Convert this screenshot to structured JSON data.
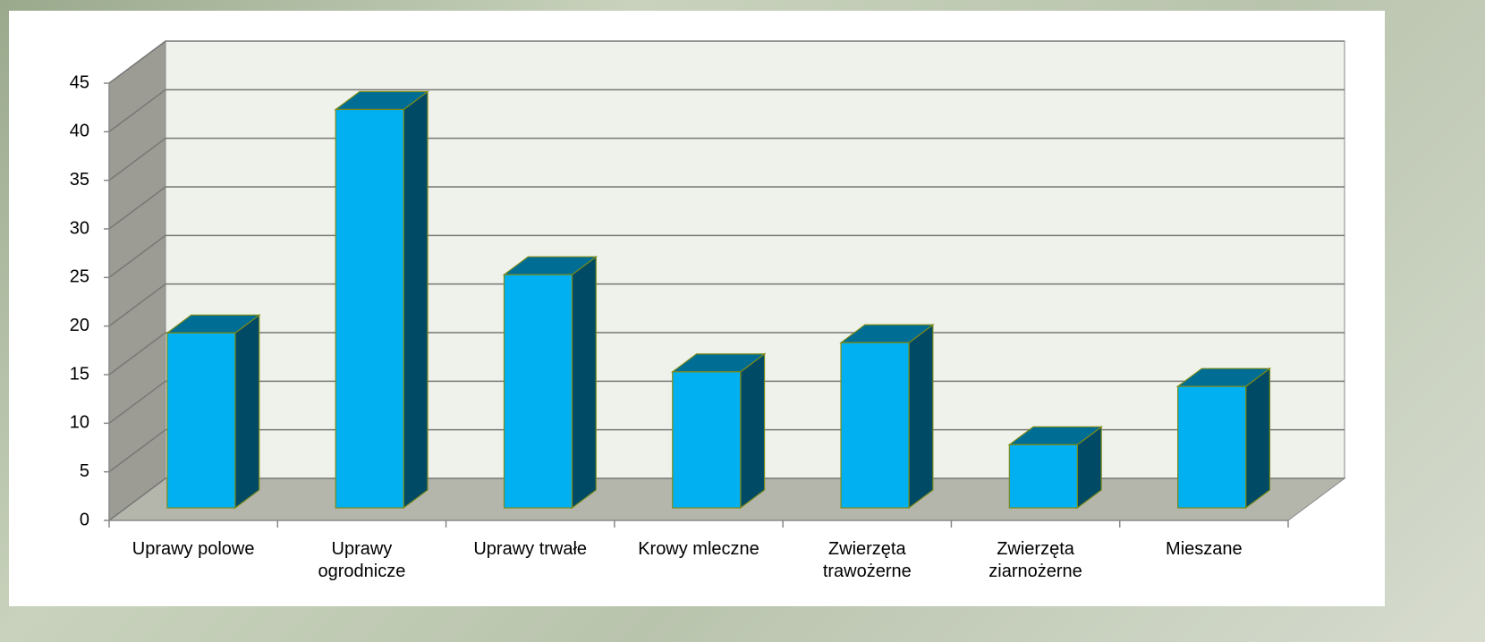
{
  "chart_data": {
    "type": "bar3d",
    "categories": [
      "Uprawy polowe",
      "Uprawy ogrodnicze",
      "Uprawy trwałe",
      "Krowy mleczne",
      "Zwierzęta trawożerne",
      "Zwierzęta ziarnożerne",
      "Mieszane"
    ],
    "values": [
      18,
      41,
      24,
      14,
      17,
      6.5,
      12.5
    ],
    "color": "#00b0f0",
    "ylim": [
      0,
      45
    ],
    "yticks": [
      0,
      5,
      10,
      15,
      20,
      25,
      30,
      35,
      40,
      45
    ],
    "grid": true
  }
}
